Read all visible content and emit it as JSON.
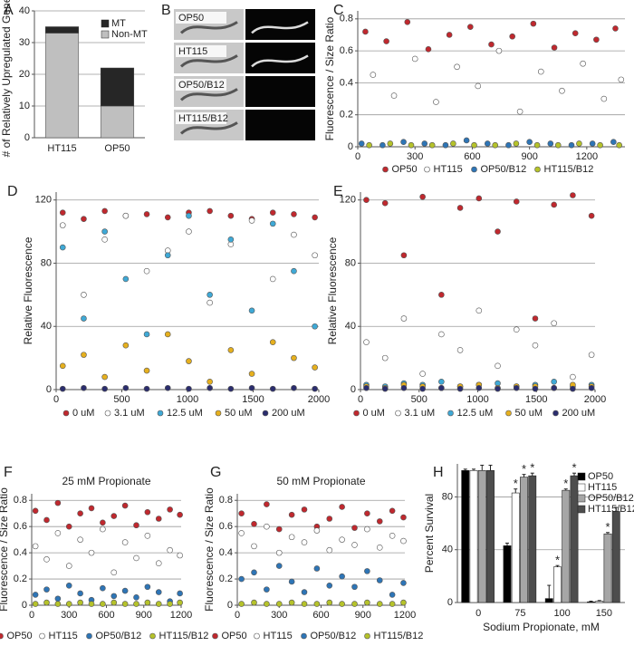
{
  "chart_data": [
    {
      "panel": "A",
      "type": "bar",
      "stacked": true,
      "categories": [
        "HT115",
        "OP50"
      ],
      "series": [
        {
          "name": "Non-MT",
          "color": "#bfbfbf",
          "values": [
            33,
            10
          ]
        },
        {
          "name": "MT",
          "color": "#262626",
          "values": [
            2,
            12
          ]
        }
      ],
      "ylabel": "# of Relatively Upregulated Genes",
      "ylim": [
        0,
        40
      ],
      "yticks": [
        0,
        10,
        20,
        30,
        40
      ],
      "grid": true,
      "legend": "upper right"
    },
    {
      "panel": "B",
      "type": "image",
      "labels": [
        "OP50",
        "HT115",
        "OP50/B12",
        "HT115/B12"
      ]
    },
    {
      "panel": "C",
      "type": "scatter",
      "ylabel": "Fluorescence / Size Ratio",
      "xlim": [
        0,
        1400
      ],
      "xticks": [
        0,
        300,
        600,
        900,
        1200
      ],
      "ylim": [
        0,
        0.85
      ],
      "yticks": [
        0,
        0.2,
        0.4,
        0.6,
        0.8
      ],
      "grid": true,
      "legend": "bottom",
      "series": [
        {
          "name": "OP50",
          "color": "#c0282e",
          "x": [
            40,
            150,
            260,
            370,
            480,
            590,
            700,
            810,
            920,
            1030,
            1140,
            1250,
            1350
          ],
          "values": [
            0.72,
            0.66,
            0.78,
            0.61,
            0.7,
            0.75,
            0.64,
            0.69,
            0.77,
            0.62,
            0.71,
            0.67,
            0.74
          ]
        },
        {
          "name": "HT115",
          "color": "#ffffff",
          "x": [
            80,
            190,
            300,
            410,
            520,
            630,
            740,
            850,
            960,
            1070,
            1180,
            1290,
            1380
          ],
          "values": [
            0.45,
            0.32,
            0.55,
            0.28,
            0.5,
            0.38,
            0.6,
            0.22,
            0.47,
            0.35,
            0.52,
            0.3,
            0.42
          ]
        },
        {
          "name": "OP50/B12",
          "color": "#2e75b6",
          "x": [
            20,
            130,
            240,
            350,
            460,
            570,
            680,
            790,
            900,
            1010,
            1120,
            1230,
            1340
          ],
          "values": [
            0.02,
            0.01,
            0.03,
            0.02,
            0.01,
            0.04,
            0.02,
            0.01,
            0.03,
            0.02,
            0.01,
            0.02,
            0.03
          ]
        },
        {
          "name": "HT115/B12",
          "color": "#b5c22a",
          "x": [
            60,
            170,
            280,
            390,
            500,
            610,
            720,
            830,
            940,
            1050,
            1160,
            1270,
            1370
          ],
          "values": [
            0.01,
            0.02,
            0.01,
            0.01,
            0.02,
            0.01,
            0.01,
            0.02,
            0.01,
            0.01,
            0.02,
            0.01,
            0.01
          ]
        }
      ]
    },
    {
      "panel": "D",
      "type": "scatter",
      "ylabel": "Relative Fluorescence",
      "xlim": [
        0,
        2000
      ],
      "xticks": [
        0,
        500,
        1000,
        1500,
        2000
      ],
      "ylim": [
        0,
        125
      ],
      "yticks": [
        0,
        40,
        80,
        120
      ],
      "grid": true,
      "legend": "bottom",
      "x": [
        50,
        210,
        370,
        530,
        690,
        850,
        1010,
        1170,
        1330,
        1490,
        1650,
        1810,
        1970
      ],
      "series": [
        {
          "name": "0 uM",
          "color": "#c0282e",
          "values": [
            112,
            108,
            113,
            110,
            111,
            109,
            112,
            113,
            110,
            108,
            112,
            111,
            109
          ]
        },
        {
          "name": "3.1 uM",
          "color": "#ffffff",
          "values": [
            104,
            60,
            95,
            110,
            75,
            88,
            100,
            55,
            92,
            107,
            70,
            98,
            85
          ]
        },
        {
          "name": "12.5 uM",
          "color": "#3fa9d6",
          "values": [
            90,
            45,
            100,
            70,
            35,
            85,
            110,
            60,
            95,
            50,
            105,
            75,
            40
          ]
        },
        {
          "name": "50 uM",
          "color": "#e6b01e",
          "values": [
            15,
            22,
            8,
            28,
            12,
            35,
            18,
            5,
            25,
            10,
            30,
            20,
            14
          ]
        },
        {
          "name": "200 uM",
          "color": "#2b2d6e",
          "values": [
            0.5,
            1,
            0.5,
            1,
            0.5,
            1,
            0.5,
            1,
            0.5,
            1,
            0.5,
            1,
            0.5
          ]
        }
      ]
    },
    {
      "panel": "E",
      "type": "scatter",
      "ylabel": "Relative Fluorescence",
      "xlim": [
        0,
        2000
      ],
      "xticks": [
        0,
        500,
        1000,
        1500,
        2000
      ],
      "ylim": [
        0,
        125
      ],
      "yticks": [
        0,
        40,
        80,
        120
      ],
      "grid": true,
      "legend": "bottom",
      "x": [
        50,
        210,
        370,
        530,
        690,
        850,
        1010,
        1170,
        1330,
        1490,
        1650,
        1810,
        1970
      ],
      "series": [
        {
          "name": "0 uM",
          "color": "#c0282e",
          "values": [
            120,
            118,
            85,
            122,
            60,
            115,
            121,
            100,
            119,
            45,
            117,
            123,
            110
          ]
        },
        {
          "name": "3.1 uM",
          "color": "#ffffff",
          "values": [
            30,
            20,
            45,
            10,
            35,
            25,
            50,
            15,
            38,
            28,
            42,
            8,
            22
          ]
        },
        {
          "name": "12.5 uM",
          "color": "#3fa9d6",
          "values": [
            3,
            2,
            4,
            3,
            5,
            2,
            3,
            4,
            2,
            3,
            5,
            2,
            3
          ]
        },
        {
          "name": "50 uM",
          "color": "#e6b01e",
          "values": [
            2,
            1,
            3,
            2,
            1,
            2,
            3,
            1,
            2,
            2,
            1,
            3,
            2
          ]
        },
        {
          "name": "200 uM",
          "color": "#2b2d6e",
          "values": [
            1,
            0.5,
            1,
            0.5,
            1,
            0.5,
            1,
            0.5,
            1,
            0.5,
            1,
            0.5,
            1
          ]
        }
      ]
    },
    {
      "panel": "F",
      "type": "scatter",
      "title": "25 mM Propionate",
      "ylabel": "Fluorescence / Size Ratio",
      "xlim": [
        0,
        1200
      ],
      "xticks": [
        0,
        300,
        600,
        900,
        1200
      ],
      "ylim": [
        0,
        0.85
      ],
      "yticks": [
        0,
        0.2,
        0.4,
        0.6,
        0.8
      ],
      "grid": true,
      "legend": "bottom",
      "x": [
        30,
        120,
        210,
        300,
        390,
        480,
        570,
        660,
        750,
        840,
        930,
        1020,
        1110,
        1190
      ],
      "series": [
        {
          "name": "OP50",
          "color": "#c0282e",
          "values": [
            0.72,
            0.65,
            0.78,
            0.6,
            0.7,
            0.74,
            0.63,
            0.68,
            0.76,
            0.61,
            0.71,
            0.66,
            0.73,
            0.69
          ]
        },
        {
          "name": "HT115",
          "color": "#ffffff",
          "values": [
            0.45,
            0.35,
            0.55,
            0.3,
            0.5,
            0.4,
            0.58,
            0.25,
            0.48,
            0.36,
            0.53,
            0.32,
            0.42,
            0.38
          ]
        },
        {
          "name": "OP50/B12",
          "color": "#2e75b6",
          "values": [
            0.08,
            0.12,
            0.05,
            0.15,
            0.09,
            0.04,
            0.13,
            0.07,
            0.11,
            0.06,
            0.14,
            0.1,
            0.03,
            0.09
          ]
        },
        {
          "name": "HT115/B12",
          "color": "#b5c22a",
          "values": [
            0.01,
            0.02,
            0.01,
            0.01,
            0.02,
            0.01,
            0.01,
            0.02,
            0.01,
            0.01,
            0.02,
            0.01,
            0.01,
            0.02
          ]
        }
      ]
    },
    {
      "panel": "G",
      "type": "scatter",
      "title": "50 mM Propionate",
      "ylabel": "Fluorescence / Size Ratio",
      "xlim": [
        0,
        1200
      ],
      "xticks": [
        0,
        300,
        600,
        900,
        1200
      ],
      "ylim": [
        0,
        0.85
      ],
      "yticks": [
        0,
        0.2,
        0.4,
        0.6,
        0.8
      ],
      "grid": true,
      "legend": "bottom",
      "x": [
        30,
        120,
        210,
        300,
        390,
        480,
        570,
        660,
        750,
        840,
        930,
        1020,
        1110,
        1190
      ],
      "series": [
        {
          "name": "OP50",
          "color": "#c0282e",
          "values": [
            0.7,
            0.62,
            0.77,
            0.58,
            0.69,
            0.73,
            0.6,
            0.66,
            0.75,
            0.59,
            0.7,
            0.64,
            0.72,
            0.67
          ]
        },
        {
          "name": "HT115",
          "color": "#ffffff",
          "values": [
            0.55,
            0.45,
            0.6,
            0.4,
            0.52,
            0.48,
            0.57,
            0.42,
            0.5,
            0.46,
            0.58,
            0.44,
            0.53,
            0.49
          ]
        },
        {
          "name": "OP50/B12",
          "color": "#2e75b6",
          "values": [
            0.2,
            0.25,
            0.12,
            0.3,
            0.18,
            0.1,
            0.28,
            0.15,
            0.22,
            0.14,
            0.26,
            0.19,
            0.08,
            0.17
          ]
        },
        {
          "name": "HT115/B12",
          "color": "#b5c22a",
          "values": [
            0.01,
            0.02,
            0.01,
            0.01,
            0.02,
            0.01,
            0.01,
            0.02,
            0.01,
            0.01,
            0.02,
            0.01,
            0.01,
            0.02
          ]
        }
      ]
    },
    {
      "panel": "H",
      "type": "bar",
      "stacked": false,
      "categories": [
        "0",
        "75",
        "100",
        "150"
      ],
      "xlabel": "Sodium Propionate, mM",
      "ylabel": "Percent Survival",
      "ylim": [
        0,
        105
      ],
      "yticks": [
        0,
        40,
        80
      ],
      "grid": true,
      "legend": "upper right",
      "series": [
        {
          "name": "OP50",
          "color": "#000000",
          "values": [
            100,
            43,
            3,
            0.5
          ],
          "errors": [
            1,
            2,
            10,
            0.5
          ],
          "stars": [
            null,
            null,
            null,
            null
          ]
        },
        {
          "name": "HT115",
          "color": "#ffffff",
          "values": [
            100,
            83,
            27,
            1
          ],
          "errors": [
            1,
            3,
            1,
            0.5
          ],
          "stars": [
            null,
            "*",
            "*",
            null
          ]
        },
        {
          "name": "OP50/B12",
          "color": "#a6a6a6",
          "values": [
            100,
            95,
            85,
            52
          ],
          "errors": [
            4,
            2,
            1,
            1
          ],
          "stars": [
            null,
            "*",
            "*",
            "*"
          ]
        },
        {
          "name": "HT115/B12",
          "color": "#4d4d4d",
          "values": [
            100,
            96,
            96,
            69
          ],
          "errors": [
            4,
            2,
            2,
            3
          ],
          "stars": [
            null,
            "*",
            "*",
            null
          ]
        }
      ]
    }
  ]
}
